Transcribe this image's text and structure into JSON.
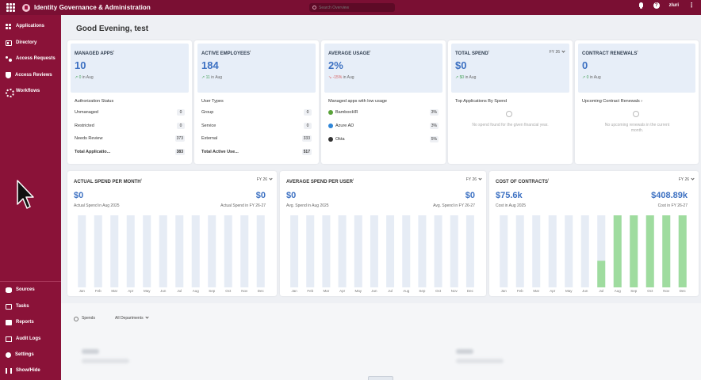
{
  "header": {
    "title": "Identity Governance & Administration",
    "search_placeholder": "Search Overview",
    "user": "zluri"
  },
  "sidebar": {
    "top_items": [
      {
        "label": "Applications",
        "icon": "applications-icon"
      },
      {
        "label": "Directory",
        "icon": "directory-icon"
      },
      {
        "label": "Access Requests",
        "icon": "access-requests-icon"
      },
      {
        "label": "Access Reviews",
        "icon": "shield-icon"
      },
      {
        "label": "Workflows",
        "icon": "workflow-icon"
      }
    ],
    "bottom_items": [
      {
        "label": "Sources",
        "icon": "database-icon"
      },
      {
        "label": "Tasks",
        "icon": "tasks-icon"
      },
      {
        "label": "Reports",
        "icon": "reports-icon"
      },
      {
        "label": "Audit Logs",
        "icon": "audit-logs-icon"
      },
      {
        "label": "Settings",
        "icon": "gear-icon"
      },
      {
        "label": "Show/Hide",
        "icon": "show-hide-icon"
      }
    ]
  },
  "greeting": "Good Evening, test",
  "cards": {
    "managed_apps": {
      "label": "MANAGED APPS",
      "value": "10",
      "delta": "0",
      "delta_period": "in Aug",
      "section_title": "Authorization Status",
      "rows": [
        {
          "label": "Unmanaged",
          "count": "0"
        },
        {
          "label": "Restricted",
          "count": "0"
        },
        {
          "label": "Needs Review",
          "count": "373"
        },
        {
          "label": "Total Applicatio...",
          "count": "383"
        }
      ]
    },
    "active_employees": {
      "label": "ACTIVE EMPLOYEES",
      "value": "184",
      "delta": "11",
      "delta_period": "in Aug",
      "section_title": "User Types",
      "rows": [
        {
          "label": "Group",
          "count": "0"
        },
        {
          "label": "Service",
          "count": "0"
        },
        {
          "label": "External",
          "count": "333"
        },
        {
          "label": "Total Active Use...",
          "count": "517"
        }
      ]
    },
    "average_usage": {
      "label": "AVERAGE USAGE",
      "value": "2%",
      "delta": "-15%",
      "delta_period": "in Aug",
      "section_title": "Managed apps with low usage",
      "rows": [
        {
          "label": "BambooHR",
          "count": "3%",
          "icon_color": "#5aa33a"
        },
        {
          "label": "Azure AD",
          "count": "3%",
          "icon_color": "#2f86d8"
        },
        {
          "label": "Okta",
          "count": "5%",
          "icon_color": "#333333"
        }
      ]
    },
    "total_spend": {
      "label": "TOTAL SPEND",
      "fy": "FY 26",
      "value": "$0",
      "delta": "$0",
      "delta_period": "in Aug",
      "section_title": "Top Applications By Spend",
      "empty_text": "No spend found for the given financial year."
    },
    "contract_renewals": {
      "label": "CONTRACT RENEWALS",
      "value": "0",
      "delta": "0",
      "delta_period": "in Aug",
      "section_title": "Upcoming Contract Renewals",
      "empty_text": "No upcoming renewals in the current month."
    }
  },
  "charts": {
    "actual_spend": {
      "title": "ACTUAL SPEND PER MONTH",
      "fy": "FY 26",
      "left_value": "$0",
      "left_label": "Actual Spend in Aug 2025",
      "right_value": "$0",
      "right_label": "Actual Spend in FY 26-27"
    },
    "avg_spend": {
      "title": "AVERAGE SPEND PER USER",
      "fy": "FY 26",
      "left_value": "$0",
      "left_label": "Avg. Spend in Aug 2025",
      "right_value": "$0",
      "right_label": "Avg. Spend in FY 26-27"
    },
    "cost_contracts": {
      "title": "COST OF CONTRACTS",
      "fy": "FY 26",
      "left_value": "$75.6k",
      "left_label": "Cost in Aug 2025",
      "right_value": "$408.89k",
      "right_label": "Cost in FY 26-27"
    }
  },
  "chart_data": [
    {
      "type": "bar",
      "title": "ACTUAL SPEND PER MONTH",
      "categories": [
        "Jan",
        "Feb",
        "Mar",
        "Apr",
        "May",
        "Jun",
        "Jul",
        "Aug",
        "Sep",
        "Oct",
        "Nov",
        "Dec"
      ],
      "values": [
        0,
        0,
        0,
        0,
        0,
        0,
        0,
        0,
        0,
        0,
        0,
        0
      ],
      "bar_color": "#e6ecf5"
    },
    {
      "type": "bar",
      "title": "AVERAGE SPEND PER USER",
      "categories": [
        "Jan",
        "Feb",
        "Mar",
        "Apr",
        "May",
        "Jun",
        "Jul",
        "Aug",
        "Sep",
        "Oct",
        "Nov",
        "Dec"
      ],
      "values": [
        0,
        0,
        0,
        0,
        0,
        0,
        0,
        0,
        0,
        0,
        0,
        0
      ],
      "bar_color": "#e6ecf5"
    },
    {
      "type": "bar",
      "title": "COST OF CONTRACTS",
      "categories": [
        "Jan",
        "Feb",
        "Mar",
        "Apr",
        "May",
        "Jun",
        "Jul",
        "Aug",
        "Sep",
        "Oct",
        "Nov",
        "Dec"
      ],
      "values": [
        0,
        0,
        0,
        0,
        0,
        0,
        24,
        65,
        65,
        65,
        65,
        65
      ],
      "ylim": [
        0,
        65
      ],
      "bar_color": "#9fdc9f",
      "background_bar_color": "#e6ecf5"
    }
  ],
  "spends": {
    "label": "Spends",
    "department_filter": "All Departments"
  }
}
